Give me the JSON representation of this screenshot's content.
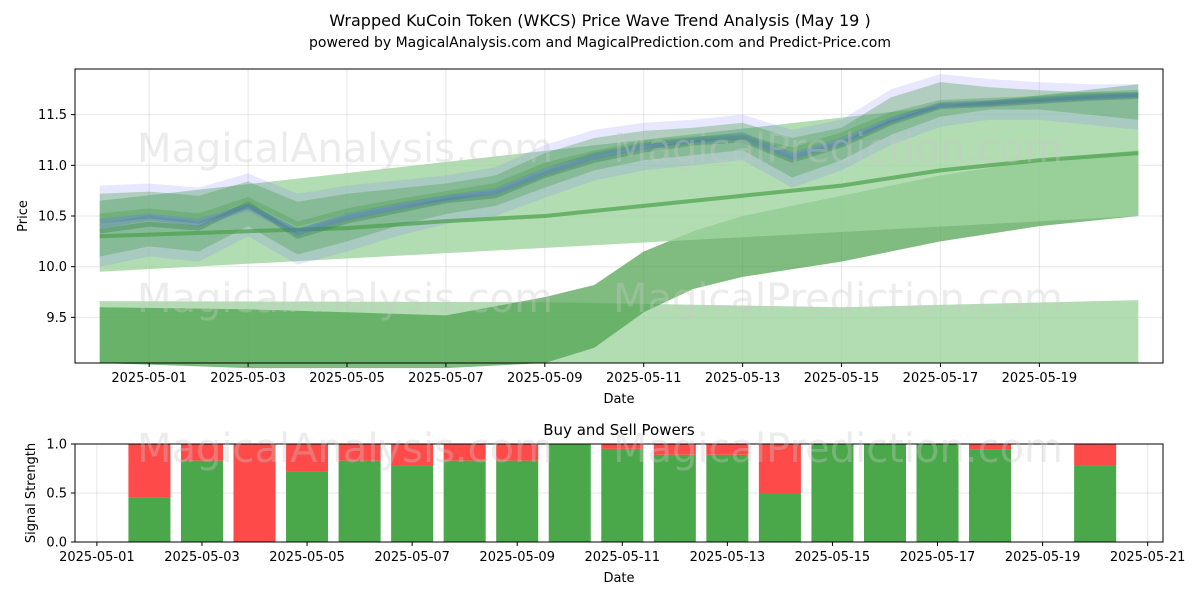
{
  "chart_data": [
    {
      "type": "area",
      "title": "Wrapped KuCoin Token (WKCS) Price Wave Trend Analysis (May 19 )",
      "subtitle": "powered by MagicalAnalysis.com and MagicalPrediction.com and Predict-Price.com",
      "xlabel": "Date",
      "ylabel": "Price",
      "xlim": [
        "2025-04-29T12:00",
        "2025-05-21T12:00"
      ],
      "ylim": [
        9.05,
        11.95
      ],
      "x_ticks": [
        "2025-05-01",
        "2025-05-03",
        "2025-05-05",
        "2025-05-07",
        "2025-05-09",
        "2025-05-11",
        "2025-05-13",
        "2025-05-15",
        "2025-05-17",
        "2025-05-19"
      ],
      "y_ticks": [
        9.5,
        10.0,
        10.5,
        11.0,
        11.5
      ],
      "grid": true,
      "colors": {
        "green": "#4a9f4a",
        "blue": "#7b7bff",
        "light_green": "#9fd39f"
      },
      "dates": [
        "2025-04-30",
        "2025-05-01",
        "2025-05-02",
        "2025-05-03",
        "2025-05-04",
        "2025-05-05",
        "2025-05-06",
        "2025-05-07",
        "2025-05-08",
        "2025-05-09",
        "2025-05-10",
        "2025-05-11",
        "2025-05-12",
        "2025-05-13",
        "2025-05-14",
        "2025-05-15",
        "2025-05-16",
        "2025-05-17",
        "2025-05-18",
        "2025-05-19",
        "2025-05-20",
        "2025-05-21"
      ],
      "wave_lines": [
        [
          10.45,
          10.5,
          10.45,
          10.6,
          10.35,
          10.5,
          10.6,
          10.68,
          10.75,
          10.95,
          11.1,
          11.2,
          11.25,
          11.3,
          11.1,
          11.25,
          11.45,
          11.6,
          11.62,
          11.65,
          11.68,
          11.7
        ],
        [
          10.35,
          10.42,
          10.38,
          10.62,
          10.3,
          10.45,
          10.55,
          10.65,
          10.7,
          10.9,
          11.05,
          11.15,
          11.22,
          11.25,
          11.05,
          11.2,
          11.42,
          11.58,
          11.6,
          11.63,
          11.66,
          11.68
        ],
        [
          10.5,
          10.55,
          10.5,
          10.66,
          10.42,
          10.55,
          10.64,
          10.72,
          10.8,
          11.0,
          11.12,
          11.22,
          11.26,
          11.28,
          11.15,
          11.3,
          11.5,
          11.62,
          11.64,
          11.66,
          11.7,
          11.72
        ],
        [
          10.4,
          10.48,
          10.42,
          10.58,
          10.33,
          10.48,
          10.58,
          10.67,
          10.73,
          10.92,
          11.08,
          11.18,
          11.24,
          11.27,
          11.08,
          11.22,
          11.44,
          11.59,
          11.61,
          11.64,
          11.67,
          11.69
        ]
      ],
      "wave_envelope": {
        "upper": [
          10.8,
          10.82,
          10.78,
          10.92,
          10.72,
          10.8,
          10.85,
          10.9,
          10.98,
          11.2,
          11.35,
          11.42,
          11.45,
          11.5,
          11.35,
          11.45,
          11.75,
          11.9,
          11.85,
          11.82,
          11.8,
          11.8
        ],
        "lower": [
          10.0,
          10.1,
          10.05,
          10.3,
          10.02,
          10.15,
          10.3,
          10.42,
          10.5,
          10.68,
          10.85,
          10.95,
          11.0,
          11.05,
          10.78,
          10.95,
          11.2,
          11.38,
          11.45,
          11.45,
          11.4,
          11.35
        ]
      },
      "forecast_band_upper": {
        "x": [
          "2025-04-30",
          "2025-05-21"
        ],
        "upper": [
          10.65,
          11.8
        ],
        "lower": [
          9.95,
          10.5
        ]
      },
      "forecast_center_line": [
        [
          "2025-04-30",
          10.3
        ],
        [
          "2025-05-03",
          10.35
        ],
        [
          "2025-05-05",
          10.38
        ],
        [
          "2025-05-07",
          10.45
        ],
        [
          "2025-05-09",
          10.5
        ],
        [
          "2025-05-11",
          10.6
        ],
        [
          "2025-05-13",
          10.7
        ],
        [
          "2025-05-15",
          10.8
        ],
        [
          "2025-05-17",
          10.95
        ],
        [
          "2025-05-19",
          11.05
        ],
        [
          "2025-05-21",
          11.12
        ]
      ],
      "forecast_band_lower": {
        "x": [
          "2025-04-30",
          "2025-05-03",
          "2025-05-05",
          "2025-05-07",
          "2025-05-09",
          "2025-05-10",
          "2025-05-11",
          "2025-05-12",
          "2025-05-13",
          "2025-05-15",
          "2025-05-17",
          "2025-05-19",
          "2025-05-21"
        ],
        "upper": [
          9.6,
          9.58,
          9.55,
          9.52,
          9.7,
          9.82,
          10.15,
          10.35,
          10.5,
          10.7,
          10.9,
          11.05,
          11.15
        ],
        "lower": [
          9.05,
          9.0,
          9.0,
          9.0,
          9.05,
          9.2,
          9.55,
          9.78,
          9.9,
          10.05,
          10.25,
          10.4,
          10.5
        ]
      },
      "floor_band": {
        "x": [
          "2025-04-30",
          "2025-05-09",
          "2025-05-15",
          "2025-05-21"
        ],
        "upper": [
          9.66,
          9.65,
          9.6,
          9.67
        ],
        "lower": [
          9.05,
          9.05,
          9.05,
          9.05
        ]
      }
    },
    {
      "type": "bar",
      "title": "Buy and Sell Powers",
      "xlabel": "Date",
      "ylabel": "Signal Strength",
      "xlim": [
        "2025-04-30T14:00",
        "2025-05-21T07:00"
      ],
      "ylim": [
        0,
        1.0
      ],
      "x_ticks": [
        "2025-05-01",
        "2025-05-03",
        "2025-05-05",
        "2025-05-07",
        "2025-05-09",
        "2025-05-11",
        "2025-05-13",
        "2025-05-15",
        "2025-05-17",
        "2025-05-19",
        "2025-05-21"
      ],
      "y_ticks": [
        0.0,
        0.5,
        1.0
      ],
      "grid": true,
      "colors": {
        "buy": "#4aa84a",
        "sell": "#ff4a4a"
      },
      "categories": [
        "2025-05-02",
        "2025-05-03",
        "2025-05-04",
        "2025-05-05",
        "2025-05-06",
        "2025-05-07",
        "2025-05-08",
        "2025-05-09",
        "2025-05-10",
        "2025-05-11",
        "2025-05-12",
        "2025-05-13",
        "2025-05-14",
        "2025-05-15",
        "2025-05-16",
        "2025-05-17",
        "2025-05-18",
        "2025-05-20"
      ],
      "series": [
        {
          "name": "Buy",
          "values": [
            0.45,
            0.83,
            0.0,
            0.72,
            0.83,
            0.78,
            0.83,
            0.83,
            1.0,
            0.95,
            0.89,
            0.89,
            0.5,
            1.0,
            1.0,
            1.0,
            0.94,
            0.78
          ]
        },
        {
          "name": "Sell",
          "values": [
            0.55,
            0.17,
            1.0,
            0.28,
            0.17,
            0.22,
            0.17,
            0.17,
            0.0,
            0.05,
            0.11,
            0.11,
            0.5,
            0.0,
            0.0,
            0.0,
            0.06,
            0.22
          ]
        }
      ]
    }
  ],
  "watermarks": [
    "MagicalAnalysis.com",
    "MagicalPrediction.com"
  ]
}
